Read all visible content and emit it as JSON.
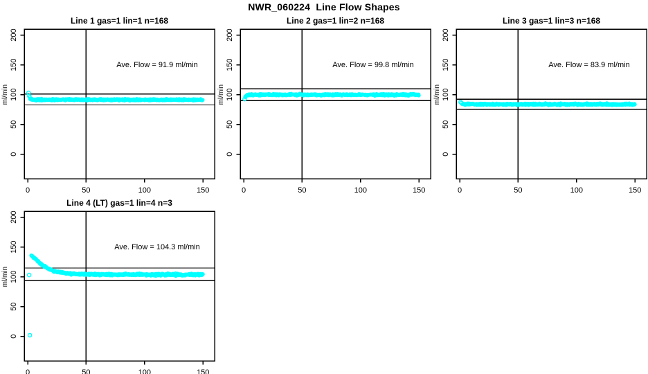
{
  "title": "NWR_060224  Line Flow Shapes",
  "colors": {
    "point": "#00FFFF",
    "axis": "#000000",
    "background": "#FFFFFF"
  },
  "chart_data": {
    "type": "scatter",
    "title": "NWR_060224  Line Flow Shapes",
    "xlabel": "",
    "ylabel": "ml/min",
    "xlim": [
      -3,
      160
    ],
    "ylim": [
      -41,
      210
    ],
    "x_ticks": [
      0,
      50,
      100,
      150
    ],
    "y_ticks": [
      0,
      50,
      100,
      150,
      200
    ],
    "vline_x": 50,
    "point_color": "#00FFFF",
    "legend": "none",
    "grid": "off",
    "subplots": [
      {
        "title": "Line 1 gas=1 lin=1 n=168",
        "ave_flow": 91.9,
        "annotation": "Ave. Flow =  91.9  ml/min",
        "hlines": [
          101.1,
          82.7
        ],
        "lead_points": [
          [
            0.7,
            103
          ],
          [
            1.3,
            97.5
          ]
        ],
        "trend": [
          [
            1.8,
            94.5
          ],
          [
            2.6,
            92.3
          ],
          [
            5,
            91.6
          ],
          [
            40,
            91.5
          ],
          [
            150,
            91.4
          ]
        ],
        "noise": 0.8
      },
      {
        "title": "Line 2 gas=1 lin=2 n=168",
        "ave_flow": 99.8,
        "annotation": "Ave. Flow =  99.8  ml/min",
        "hlines": [
          109.8,
          89.8
        ],
        "lead_points": [
          [
            0.8,
            92.5
          ]
        ],
        "trend": [
          [
            1.2,
            96
          ],
          [
            2.5,
            98.8
          ],
          [
            5,
            99.8
          ],
          [
            150,
            99.8
          ]
        ],
        "noise": 0.8
      },
      {
        "title": "Line 3 gas=1 lin=3 n=168",
        "ave_flow": 83.9,
        "annotation": "Ave. Flow =  83.9  ml/min",
        "hlines": [
          92.3,
          75.5
        ],
        "lead_points": [
          [
            0.8,
            87.5
          ],
          [
            1.6,
            85.8
          ]
        ],
        "trend": [
          [
            2.2,
            84.6
          ],
          [
            4,
            84
          ],
          [
            150,
            83.8
          ]
        ],
        "noise": 0.8
      },
      {
        "title": "Line 4 (LT) gas=1 lin=4 n=3",
        "ave_flow": 104.3,
        "annotation": "Ave. Flow =  104.3  ml/min",
        "hlines": [
          114.7,
          93.9
        ],
        "lead_points": [
          [
            1.2,
            103
          ],
          [
            1.8,
            2
          ]
        ],
        "trend": [
          [
            3,
            136.5
          ],
          [
            5,
            132.5
          ],
          [
            8,
            127
          ],
          [
            12,
            120.5
          ],
          [
            16,
            115.5
          ],
          [
            20,
            111.5
          ],
          [
            24,
            109
          ],
          [
            28,
            107.2
          ],
          [
            33,
            105.8
          ],
          [
            38,
            104.9
          ],
          [
            45,
            104.4
          ],
          [
            60,
            104
          ],
          [
            100,
            103.8
          ],
          [
            150,
            103.6
          ]
        ],
        "noise": 1.0
      }
    ]
  }
}
